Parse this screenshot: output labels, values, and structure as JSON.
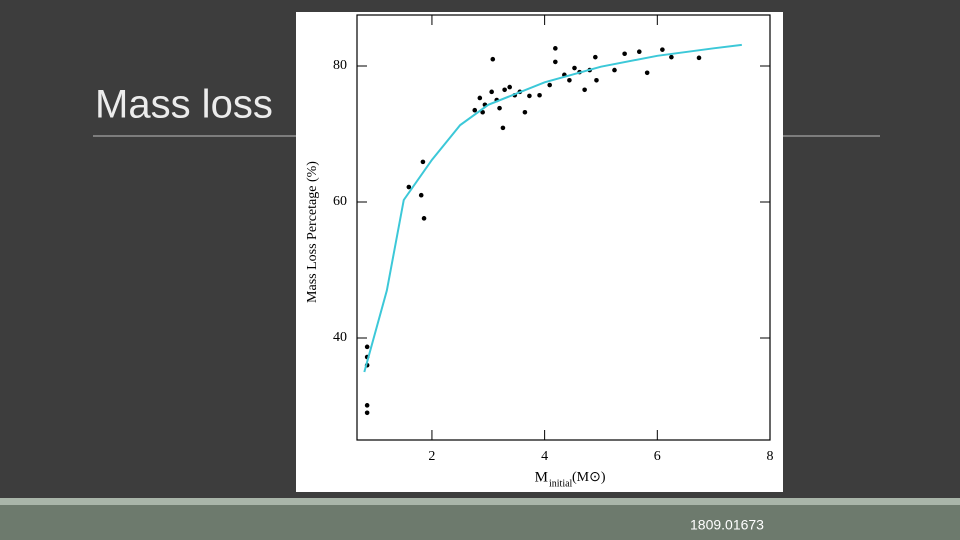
{
  "slide": {
    "title": "Mass loss",
    "footer": "1809.01673"
  },
  "chart_data": {
    "type": "scatter",
    "ylabel": "Mass Loss Percetage (%)",
    "xlabel": {
      "main": "M",
      "sub": "initial",
      "unit": "(M⊙)"
    },
    "xlim": [
      0.67,
      8
    ],
    "ylim": [
      25,
      87.5
    ],
    "xticks": [
      2,
      4,
      6,
      8
    ],
    "yticks": [
      40,
      60,
      80
    ],
    "series": [
      {
        "type": "scatter",
        "color": "#000000",
        "x": [
          0.85,
          0.85,
          0.85,
          0.85,
          0.85,
          1.59,
          1.84,
          1.81,
          1.86,
          3.08,
          2.76,
          2.85,
          2.94,
          3.06,
          3.15,
          3.26,
          3.29,
          3.38,
          3.47,
          3.56,
          3.65,
          3.73,
          3.91,
          4.09,
          4.19,
          4.19,
          4.35,
          4.44,
          4.53,
          4.62,
          4.71,
          4.8,
          4.9,
          4.92,
          5.24,
          5.42,
          5.68,
          5.82,
          6.09,
          6.25,
          6.74,
          2.9,
          3.2
        ],
        "y": [
          30.1,
          29.0,
          38.7,
          37.2,
          36.0,
          62.2,
          65.9,
          61.0,
          57.6,
          81.0,
          73.5,
          75.3,
          74.3,
          76.2,
          75.0,
          70.9,
          76.5,
          76.9,
          75.7,
          76.2,
          73.2,
          75.6,
          75.7,
          77.2,
          82.6,
          80.6,
          78.7,
          77.9,
          79.7,
          79.1,
          76.5,
          79.4,
          81.3,
          77.9,
          79.4,
          81.8,
          82.1,
          79.0,
          82.4,
          81.3,
          81.2,
          73.2,
          73.8
        ]
      },
      {
        "type": "line",
        "color": "#3cc8d8",
        "x": [
          0.8,
          1.2,
          1.5,
          2,
          2.5,
          3,
          4,
          5,
          6,
          7,
          7.5
        ],
        "y": [
          35,
          47,
          60.3,
          66.2,
          71.3,
          74.3,
          77.6,
          79.9,
          81.5,
          82.6,
          83.1
        ]
      }
    ]
  }
}
